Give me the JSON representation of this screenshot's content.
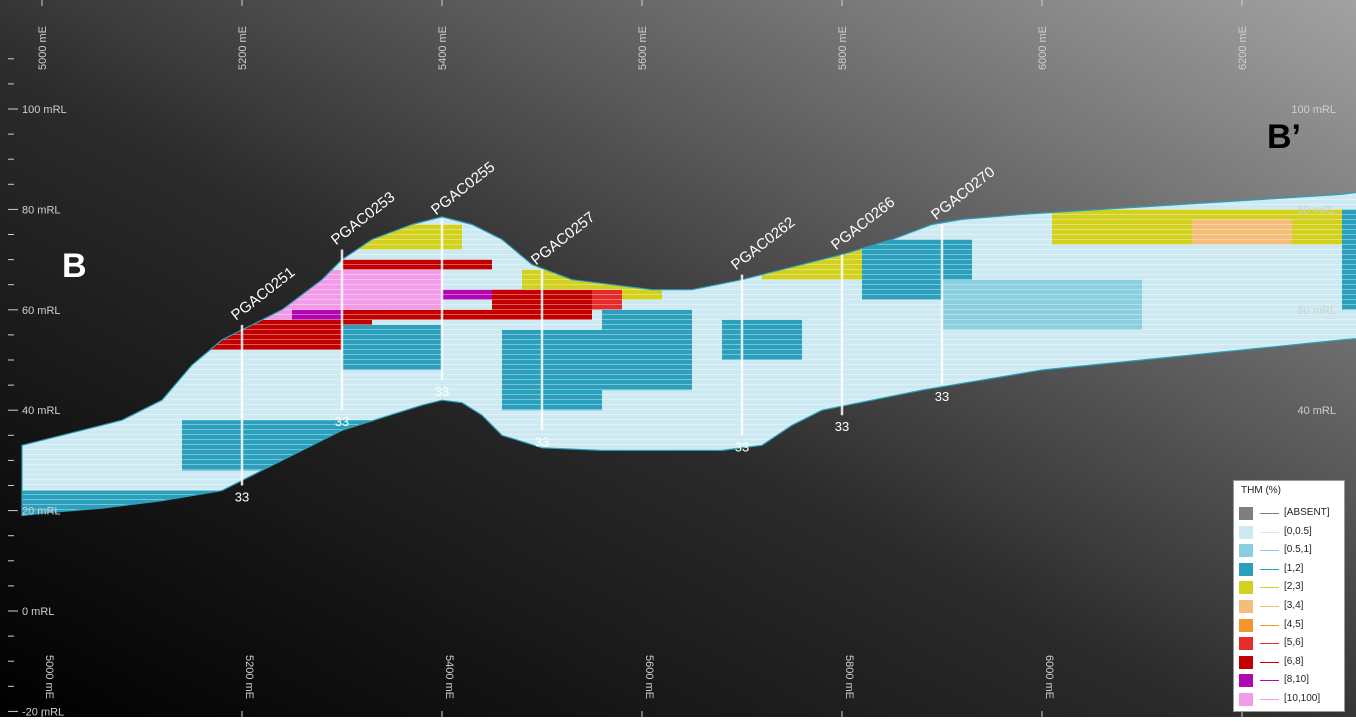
{
  "view": {
    "x_axis": {
      "unit": "mE",
      "ticks": [
        5000,
        5200,
        5400,
        5600,
        5800,
        6000,
        6200
      ],
      "labels": [
        "5000 mE",
        "5200 mE",
        "5400 mE",
        "5600 mE",
        "5800 mE",
        "6000 mE",
        "6200 mE"
      ]
    },
    "y_axis": {
      "unit": "mRL",
      "ticks": [
        100,
        80,
        60,
        40,
        20,
        0,
        -20
      ],
      "labels": [
        "100 mRL",
        "80 mRL",
        "60 mRL",
        "40 mRL",
        "20 mRL",
        "0 mRL",
        "-20 mRL"
      ]
    }
  },
  "section": {
    "start_label": "B",
    "end_label": "B’"
  },
  "drillholes": [
    {
      "id": "PGAC0251",
      "easting": 5200,
      "collar_rl": 57,
      "bottom_rl": 25,
      "bottom_label": "33"
    },
    {
      "id": "PGAC0253",
      "easting": 5300,
      "collar_rl": 72,
      "bottom_rl": 40,
      "bottom_label": "33"
    },
    {
      "id": "PGAC0255",
      "easting": 5400,
      "collar_rl": 78,
      "bottom_rl": 46,
      "bottom_label": "33"
    },
    {
      "id": "PGAC0257",
      "easting": 5500,
      "collar_rl": 68,
      "bottom_rl": 36,
      "bottom_label": "33"
    },
    {
      "id": "PGAC0262",
      "easting": 5700,
      "collar_rl": 67,
      "bottom_rl": 35,
      "bottom_label": "33"
    },
    {
      "id": "PGAC0266",
      "easting": 5800,
      "collar_rl": 71,
      "bottom_rl": 39,
      "bottom_label": "33"
    },
    {
      "id": "PGAC0270",
      "easting": 5900,
      "collar_rl": 77,
      "bottom_rl": 45,
      "bottom_label": "33"
    }
  ],
  "grade_zones": [
    {
      "class": "[10,100]",
      "color": "#f29be8",
      "x1": 5220,
      "x2": 5400,
      "top": 68,
      "bottom": 58
    },
    {
      "class": "[8,10]",
      "color": "#b306b3",
      "x1": 5250,
      "x2": 5300,
      "top": 60,
      "bottom": 57
    },
    {
      "class": "[6,8]",
      "color": "#c20000",
      "x1": 5160,
      "x2": 5330,
      "top": 58,
      "bottom": 52
    },
    {
      "class": "[6,8]",
      "color": "#c20000",
      "x1": 5300,
      "x2": 5450,
      "top": 70,
      "bottom": 68
    },
    {
      "class": "[6,8]",
      "color": "#c20000",
      "x1": 5300,
      "x2": 5450,
      "top": 60,
      "bottom": 58
    },
    {
      "class": "[8,10]",
      "color": "#b306b3",
      "x1": 5400,
      "x2": 5500,
      "top": 64,
      "bottom": 62
    },
    {
      "class": "[6,8]",
      "color": "#c20000",
      "x1": 5450,
      "x2": 5550,
      "top": 64,
      "bottom": 58
    },
    {
      "class": "[5,6]",
      "color": "#e62b2b",
      "x1": 5550,
      "x2": 5580,
      "top": 64,
      "bottom": 60
    },
    {
      "class": "[2,3]",
      "color": "#d2d21e",
      "x1": 5280,
      "x2": 5420,
      "top": 77,
      "bottom": 72
    },
    {
      "class": "[2,3]",
      "color": "#d2d21e",
      "x1": 5480,
      "x2": 5580,
      "top": 68,
      "bottom": 64
    },
    {
      "class": "[2,3]",
      "color": "#d2d21e",
      "x1": 5580,
      "x2": 5620,
      "top": 65,
      "bottom": 62
    },
    {
      "class": "[2,3]",
      "color": "#d2d21e",
      "x1": 5720,
      "x2": 5860,
      "top": 72,
      "bottom": 66
    },
    {
      "class": "[2,3]",
      "color": "#d2d21e",
      "x1": 6010,
      "x2": 6300,
      "top": 80,
      "bottom": 73
    },
    {
      "class": "[3,4]",
      "color": "#f5bd7a",
      "x1": 6150,
      "x2": 6250,
      "top": 78,
      "bottom": 73
    },
    {
      "class": "[1,2]",
      "color": "#2aa0bd",
      "x1": 5460,
      "x2": 5560,
      "top": 56,
      "bottom": 40
    },
    {
      "class": "[1,2]",
      "color": "#2aa0bd",
      "x1": 5560,
      "x2": 5650,
      "top": 60,
      "bottom": 44
    },
    {
      "class": "[1,2]",
      "color": "#2aa0bd",
      "x1": 5300,
      "x2": 5400,
      "top": 57,
      "bottom": 48
    },
    {
      "class": "[1,2]",
      "color": "#2aa0bd",
      "x1": 5680,
      "x2": 5760,
      "top": 58,
      "bottom": 50
    },
    {
      "class": "[1,2]",
      "color": "#2aa0bd",
      "x1": 5820,
      "x2": 5930,
      "top": 74,
      "bottom": 62
    },
    {
      "class": "[1,2]",
      "color": "#2aa0bd",
      "x1": 6300,
      "x2": 6400,
      "top": 80,
      "bottom": 60
    },
    {
      "class": "[0.5,1]",
      "color": "#8acfe0",
      "x1": 5900,
      "x2": 6100,
      "top": 66,
      "bottom": 56
    },
    {
      "class": "[1,2]",
      "color": "#2aa0bd",
      "x1": 4980,
      "x2": 5200,
      "top": 24,
      "bottom": 19
    },
    {
      "class": "[1,2]",
      "color": "#2aa0bd",
      "x1": 5140,
      "x2": 5340,
      "top": 38,
      "bottom": 28
    }
  ],
  "legend": {
    "title": "THM (%)",
    "items": [
      {
        "label": "[ABSENT]",
        "color": "#7f7f7f"
      },
      {
        "label": "[0,0.5]",
        "color": "#cde9f1"
      },
      {
        "label": "[0.5,1]",
        "color": "#8acfe0"
      },
      {
        "label": "[1,2]",
        "color": "#2aa0bd"
      },
      {
        "label": "[2,3]",
        "color": "#d2d21e"
      },
      {
        "label": "[3,4]",
        "color": "#f5bd7a"
      },
      {
        "label": "[4,5]",
        "color": "#f5962d"
      },
      {
        "label": "[5,6]",
        "color": "#e62b2b"
      },
      {
        "label": "[6,8]",
        "color": "#c20000"
      },
      {
        "label": "[8,10]",
        "color": "#b306b3"
      },
      {
        "label": "[10,100]",
        "color": "#f29be8"
      }
    ]
  }
}
